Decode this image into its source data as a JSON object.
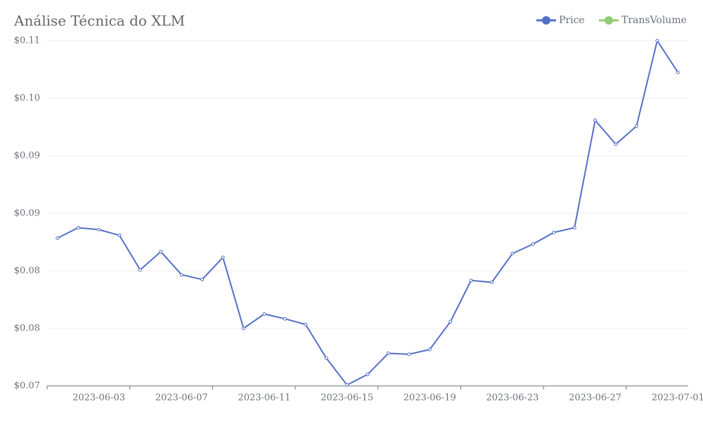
{
  "chart_data": {
    "type": "line",
    "title": "Análise Técnica do XLM",
    "categories": [
      null,
      null,
      "2023-06-03",
      null,
      null,
      null,
      "2023-06-07",
      null,
      null,
      null,
      "2023-06-11",
      null,
      null,
      null,
      "2023-06-15",
      null,
      null,
      null,
      "2023-06-19",
      null,
      null,
      null,
      "2023-06-23",
      null,
      null,
      null,
      "2023-06-27",
      null,
      null,
      null,
      "2023-07-01"
    ],
    "series": [
      {
        "name": "Price",
        "color": "#5470c6",
        "values": [
          0.0854,
          0.0865,
          0.0863,
          0.0857,
          0.0821,
          0.084,
          0.0816,
          0.0811,
          0.0834,
          0.076,
          0.0775,
          0.077,
          0.0764,
          0.0729,
          0.0701,
          0.0712,
          0.0734,
          0.0733,
          0.0738,
          0.0767,
          0.081,
          0.0808,
          0.0838,
          0.0848,
          0.086,
          0.0865,
          0.0977,
          0.0952,
          0.0971,
          0.106,
          0.1027
        ]
      },
      {
        "name": "TransVolume",
        "color": "#91cc75",
        "values": [
          null,
          null,
          null,
          null,
          null,
          null,
          null,
          null,
          null,
          null,
          null,
          null,
          null,
          null,
          null,
          null,
          null,
          null,
          null,
          null,
          null,
          null,
          null,
          null,
          null,
          null,
          null,
          null,
          null,
          null,
          null
        ]
      }
    ],
    "ylim": [
      0.07,
      0.106
    ],
    "yticks": [
      {
        "value": 0.07,
        "label": "$0.07"
      },
      {
        "value": 0.076,
        "label": "$0.08"
      },
      {
        "value": 0.082,
        "label": "$0.08"
      },
      {
        "value": 0.088,
        "label": "$0.09"
      },
      {
        "value": 0.094,
        "label": "$0.09"
      },
      {
        "value": 0.1,
        "label": "$0.10"
      },
      {
        "value": 0.106,
        "label": "$0.11"
      }
    ],
    "grid": true
  }
}
